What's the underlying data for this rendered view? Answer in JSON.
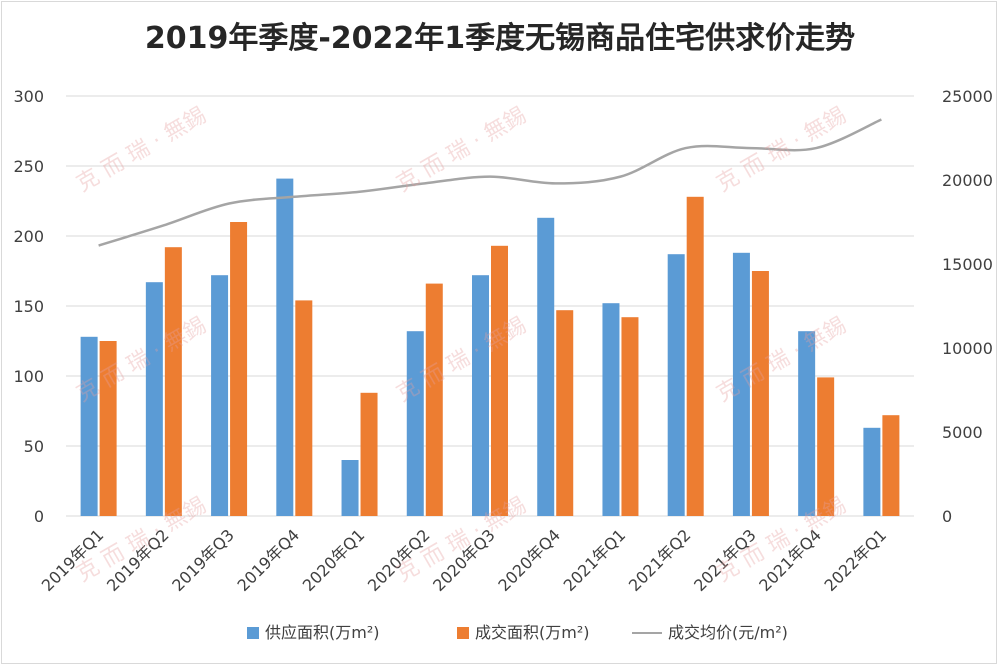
{
  "chart_data": {
    "type": "bar",
    "title": "2019年季度-2022年1季度无锡商品住宅供求价走势",
    "categories": [
      "2019年Q1",
      "2019年Q2",
      "2019年Q3",
      "2019年Q4",
      "2020年Q1",
      "2020年Q2",
      "2020年Q3",
      "2020年Q4",
      "2021年Q1",
      "2021年Q2",
      "2021年Q3",
      "2021年Q4",
      "2022年Q1"
    ],
    "series": [
      {
        "name": "供应面积(万m²)",
        "type": "bar",
        "axis": "left",
        "color": "#5b9bd5",
        "values": [
          128,
          167,
          172,
          241,
          40,
          132,
          172,
          213,
          152,
          187,
          188,
          132,
          63
        ]
      },
      {
        "name": "成交面积(万m²)",
        "type": "bar",
        "axis": "left",
        "color": "#ed7d31",
        "values": [
          125,
          192,
          210,
          154,
          88,
          166,
          193,
          147,
          142,
          228,
          175,
          99,
          72
        ]
      },
      {
        "name": "成交均价(元/m²)",
        "type": "line",
        "axis": "right",
        "color": "#a5a5a5",
        "values": [
          16100,
          17300,
          18600,
          19000,
          19300,
          19800,
          20200,
          19800,
          20200,
          21900,
          21900,
          21900,
          23600
        ]
      }
    ],
    "y_left": {
      "min": 0,
      "max": 300,
      "ticks": [
        0,
        50,
        100,
        150,
        200,
        250,
        300
      ]
    },
    "y_right": {
      "min": 0,
      "max": 25000,
      "ticks": [
        0,
        5000,
        10000,
        15000,
        20000,
        25000
      ]
    },
    "grid": true,
    "legend_position": "bottom"
  },
  "watermark": {
    "text": "克 而 瑞 · 無錫"
  }
}
